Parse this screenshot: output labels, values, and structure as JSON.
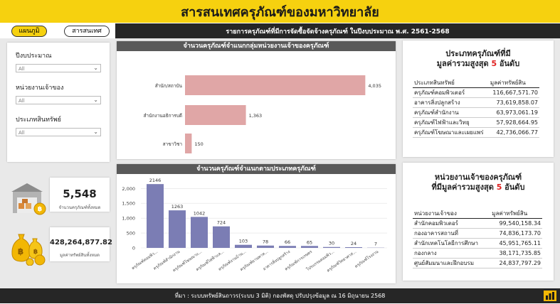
{
  "title": "สารสนเทศครุภัณฑ์ของมหาวิทยาลัย",
  "nav": {
    "map_label": "แผนภูมิ",
    "info_label": "สารสนเทศ"
  },
  "subtitle": "รายการครุภัณฑ์ที่มีการจัดซื้อจัดจ้างครุภัณฑ์ ในปีงบประมาณ พ.ศ. 2561-2568",
  "filters": [
    {
      "label": "ปีงบประมาณ",
      "value": "All"
    },
    {
      "label": "หน่วยงานเจ้าของ",
      "value": "All"
    },
    {
      "label": "ประเภทสินทรัพย์",
      "value": "All"
    }
  ],
  "kpi": {
    "count_value": "5,548",
    "count_label": "จำนวนครุภัณฑ์ทั้งหมด",
    "value_value": "428,264,877.82",
    "value_label": "มูลค่าทรัพย์สินทั้งหมด"
  },
  "colors": {
    "hbar": "#e0a6a6",
    "vbar": "#7b7db4",
    "accent": "#f6d10f",
    "highlight": "#e02020"
  },
  "chart_data": [
    {
      "type": "bar",
      "orientation": "horizontal",
      "title": "จำนวนครุภัณฑ์จำแนกกลุ่มหน่วยงานเจ้าของครุภัณฑ์",
      "categories": [
        "สำนัก/สถาบัน",
        "สำนักงานอธิการบดี",
        "สาขาวิชา"
      ],
      "values": [
        4035,
        1363,
        150
      ],
      "value_labels": [
        "4,035",
        "1,363",
        "150"
      ],
      "xlim": [
        0,
        4300
      ]
    },
    {
      "type": "bar",
      "title": "จำนวนครุภัณฑ์จำแนกตามประเภทครุภัณฑ์",
      "categories": [
        "ครุภัณฑ์คอมพิว...",
        "ครุภัณฑ์สำนักงาน",
        "ครุภัณฑ์โฆษณาแ...",
        "ครุภัณฑ์ไฟฟ้าแล...",
        "ครุภัณฑ์งานบ้าน...",
        "ครุภัณฑ์ยานพาห...",
        "อาคารสิ่งปลูกสร้าง",
        "ครุภัณฑ์การเกษตร",
        "โปรแกรมคอมพิว...",
        "ครุภัณฑ์วิทยาศาส...",
        "ครุภัณฑ์โรงงาน"
      ],
      "values": [
        2146,
        1263,
        1042,
        724,
        103,
        78,
        66,
        65,
        30,
        24,
        7
      ],
      "y_ticks": [
        "2,000",
        "1,500",
        "1,000",
        "500",
        "0"
      ],
      "ylim": [
        0,
        2150
      ]
    }
  ],
  "top_types": {
    "title_line1": "ประเภทครุภัณฑ์ที่มี",
    "title_pre": "มูลค่ารวมสูงสุด ",
    "title_num": "5",
    "title_post": " อันดับ",
    "col1": "ประเภทสินทรัพย์",
    "col2": "มูลค่าทรัพย์สิน",
    "rows": [
      {
        "name": "ครุภัณฑ์คอมพิวเตอร์",
        "value": "116,667,571.70"
      },
      {
        "name": "อาคารสิ่งปลูกสร้าง",
        "value": "73,619,858.07"
      },
      {
        "name": "ครุภัณฑ์สำนักงาน",
        "value": "63,973,061.19"
      },
      {
        "name": "ครุภัณฑ์ไฟฟ้าและวิทยุ",
        "value": "57,928,664.95"
      },
      {
        "name": "ครุภัณฑ์โฆษณาและเผยแพร่",
        "value": "42,736,066.77"
      }
    ]
  },
  "top_owners": {
    "title_line1": "หน่วยงานเจ้าของครุภัณฑ์",
    "title_pre": "ที่มีมูลค่ารวมสูงสุด ",
    "title_num": "5",
    "title_post": " อันดับ",
    "col1": "หน่วยงานเจ้าของ",
    "col2": "มูลค่าทรัพย์สิน",
    "rows": [
      {
        "name": "สำนักคอมพิวเตอร์",
        "value": "99,540,158.34"
      },
      {
        "name": "กองอาคารสถานที่",
        "value": "74,836,173.70"
      },
      {
        "name": "สำนักเทคโนโลยีการศึกษา",
        "value": "45,951,765.11"
      },
      {
        "name": "กองกลาง",
        "value": "38,171,735.85"
      },
      {
        "name": "ศูนย์สัมมนาและฝึกอบรม",
        "value": "24,837,797.29"
      }
    ]
  },
  "footer": "ที่มา : ระบบทรัพย์สินถาวร(ระบบ 3 มิติ) กองพัสดุ ปรับปรุงข้อมูล ณ 16 มิถุนายน 2568",
  "icons": {
    "warehouse": "warehouse-icon",
    "money": "money-bag-icon",
    "powerbi": "powerbi-logo-icon"
  }
}
